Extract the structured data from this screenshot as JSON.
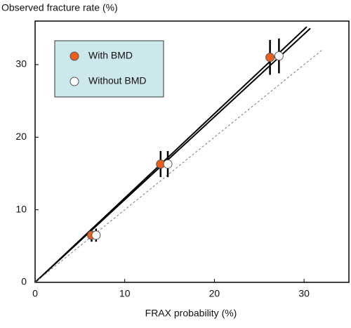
{
  "chart_data": {
    "type": "scatter",
    "title": "Observed fracture rate (%)",
    "x_label": "FRAX probability (%)",
    "xlim": [
      0,
      35
    ],
    "ylim": [
      0,
      36
    ],
    "xticks": [
      0,
      10,
      20,
      30
    ],
    "yticks": [
      0,
      10,
      20,
      30
    ],
    "series": [
      {
        "name": "With BMD",
        "color": "#e8601c",
        "x": [
          6.3,
          14,
          26.2
        ],
        "values": [
          6.5,
          16.3,
          31
        ],
        "errors": [
          0.9,
          1.8,
          2.4
        ]
      },
      {
        "name": "Without BMD",
        "color": "#ffffff",
        "x": [
          6.8,
          14.8,
          27.2
        ],
        "values": [
          6.5,
          16.3,
          31.2
        ],
        "errors": [
          0.9,
          1.8,
          2.4
        ]
      }
    ],
    "lines": [
      {
        "x": [
          0,
          30.3
        ],
        "values": [
          0,
          35.2
        ],
        "style": "solid"
      },
      {
        "x": [
          0,
          30.7
        ],
        "values": [
          0,
          35.0
        ],
        "style": "solid"
      },
      {
        "x": [
          0,
          32
        ],
        "values": [
          0,
          32
        ],
        "style": "dashed"
      }
    ]
  }
}
